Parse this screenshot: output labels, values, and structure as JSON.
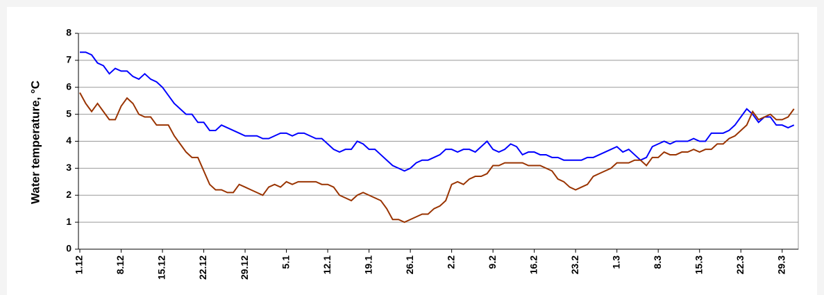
{
  "chart_data": {
    "type": "line",
    "y_label": "Water temperature, °C",
    "categories": [
      "1.12",
      null,
      null,
      null,
      null,
      null,
      null,
      "8.12",
      null,
      null,
      null,
      null,
      null,
      null,
      "15.12",
      null,
      null,
      null,
      null,
      null,
      null,
      "22.12",
      null,
      null,
      null,
      null,
      null,
      null,
      "29.12",
      null,
      null,
      null,
      null,
      null,
      null,
      "5.1",
      null,
      null,
      null,
      null,
      null,
      null,
      "12.1",
      null,
      null,
      null,
      null,
      null,
      null,
      "19.1",
      null,
      null,
      null,
      null,
      null,
      null,
      "26.1",
      null,
      null,
      null,
      null,
      null,
      null,
      "2.2",
      null,
      null,
      null,
      null,
      null,
      null,
      "9.2",
      null,
      null,
      null,
      null,
      null,
      null,
      "16.2",
      null,
      null,
      null,
      null,
      null,
      null,
      "23.2",
      null,
      null,
      null,
      null,
      null,
      null,
      "1.3",
      null,
      null,
      null,
      null,
      null,
      null,
      "8.3",
      null,
      null,
      null,
      null,
      null,
      null,
      "15.3",
      null,
      null,
      null,
      null,
      null,
      null,
      "22.3",
      null,
      null,
      null,
      null,
      null,
      null,
      "29.3",
      null,
      null
    ],
    "series": [
      {
        "color": "#0000ff",
        "values": [
          7.3,
          7.3,
          7.2,
          6.9,
          6.8,
          6.5,
          6.7,
          6.6,
          6.6,
          6.4,
          6.3,
          6.5,
          6.3,
          6.2,
          6.0,
          5.7,
          5.4,
          5.2,
          5.0,
          5.0,
          4.7,
          4.7,
          4.4,
          4.4,
          4.6,
          4.5,
          4.4,
          4.3,
          4.2,
          4.2,
          4.2,
          4.1,
          4.1,
          4.2,
          4.3,
          4.3,
          4.2,
          4.3,
          4.3,
          4.2,
          4.1,
          4.1,
          3.9,
          3.7,
          3.6,
          3.7,
          3.7,
          4.0,
          3.9,
          3.7,
          3.7,
          3.5,
          3.3,
          3.1,
          3.0,
          2.9,
          3.0,
          3.2,
          3.3,
          3.3,
          3.4,
          3.5,
          3.7,
          3.7,
          3.6,
          3.7,
          3.7,
          3.6,
          3.8,
          4.0,
          3.7,
          3.6,
          3.7,
          3.9,
          3.8,
          3.5,
          3.6,
          3.6,
          3.5,
          3.5,
          3.4,
          3.4,
          3.3,
          3.3,
          3.3,
          3.3,
          3.4,
          3.4,
          3.5,
          3.6,
          3.7,
          3.8,
          3.6,
          3.7,
          3.5,
          3.3,
          3.4,
          3.8,
          3.9,
          4.0,
          3.9,
          4.0,
          4.0,
          4.0,
          4.1,
          4.0,
          4.0,
          4.3,
          4.3,
          4.3,
          4.4,
          4.6,
          4.9,
          5.2,
          5.0,
          4.7,
          4.9,
          4.9,
          4.6,
          4.6,
          4.5,
          4.6
        ]
      },
      {
        "color": "#993300",
        "values": [
          5.8,
          5.4,
          5.1,
          5.4,
          5.1,
          4.8,
          4.8,
          5.3,
          5.6,
          5.4,
          5.0,
          4.9,
          4.9,
          4.6,
          4.6,
          4.6,
          4.2,
          3.9,
          3.6,
          3.4,
          3.4,
          2.9,
          2.4,
          2.2,
          2.2,
          2.1,
          2.1,
          2.4,
          2.3,
          2.2,
          2.1,
          2.0,
          2.3,
          2.4,
          2.3,
          2.5,
          2.4,
          2.5,
          2.5,
          2.5,
          2.5,
          2.4,
          2.4,
          2.3,
          2.0,
          1.9,
          1.8,
          2.0,
          2.1,
          2.0,
          1.9,
          1.8,
          1.5,
          1.1,
          1.1,
          1.0,
          1.1,
          1.2,
          1.3,
          1.3,
          1.5,
          1.6,
          1.8,
          2.4,
          2.5,
          2.4,
          2.6,
          2.7,
          2.7,
          2.8,
          3.1,
          3.1,
          3.2,
          3.2,
          3.2,
          3.2,
          3.1,
          3.1,
          3.1,
          3.0,
          2.9,
          2.6,
          2.5,
          2.3,
          2.2,
          2.3,
          2.4,
          2.7,
          2.8,
          2.9,
          3.0,
          3.2,
          3.2,
          3.2,
          3.3,
          3.3,
          3.1,
          3.4,
          3.4,
          3.6,
          3.5,
          3.5,
          3.6,
          3.6,
          3.7,
          3.6,
          3.7,
          3.7,
          3.9,
          3.9,
          4.1,
          4.2,
          4.4,
          4.6,
          5.1,
          4.8,
          4.9,
          5.0,
          4.8,
          4.8,
          4.9,
          5.2
        ]
      }
    ],
    "ylim": [
      0,
      8
    ],
    "yticks": [
      0,
      1,
      2,
      3,
      4,
      5,
      6,
      7,
      8
    ],
    "grid": true
  }
}
